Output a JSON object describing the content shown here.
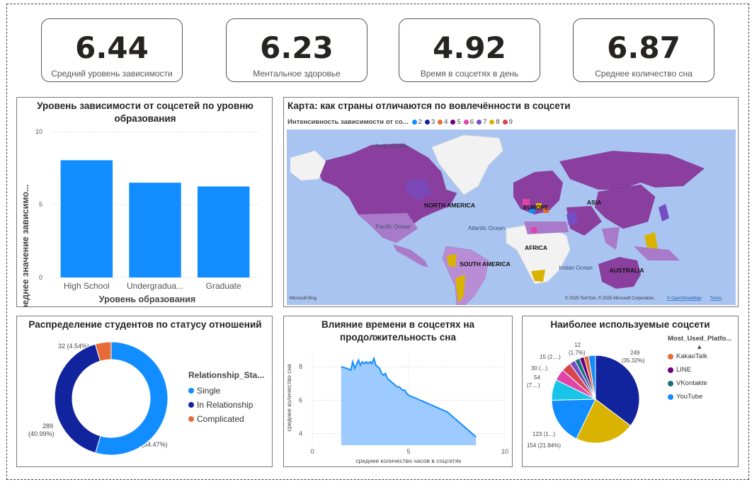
{
  "kpis": [
    {
      "value": "6.44",
      "label": "Средний уровень зависимости"
    },
    {
      "value": "6.23",
      "label": "Ментальное здоровье"
    },
    {
      "value": "4.92",
      "label": "Время в соцсетях в день"
    },
    {
      "value": "6.87",
      "label": "Среднее количество сна"
    }
  ],
  "bar_panel": {
    "title": "Уровень зависимости от соцсетей по уровню образования",
    "xlabel": "Уровень образования",
    "ylabel": "Среднее значение зависимо...",
    "color": "#118DFF"
  },
  "map_panel": {
    "title": "Карта: как страны отличаются по вовлечённости в соцсети",
    "legend_title": "Интенсивность зависимости от со...",
    "legend": [
      {
        "label": "2",
        "color": "#118DFF"
      },
      {
        "label": "3",
        "color": "#12239E"
      },
      {
        "label": "4",
        "color": "#E66C37"
      },
      {
        "label": "5",
        "color": "#6B007B"
      },
      {
        "label": "6",
        "color": "#E044A7"
      },
      {
        "label": "7",
        "color": "#744EC2"
      },
      {
        "label": "8",
        "color": "#D9B300"
      },
      {
        "label": "9",
        "color": "#D64550"
      }
    ],
    "labels": {
      "arctic": "Arctic Ocean",
      "pacific": "Pacific Ocean",
      "atlantic": "Atlantic Ocean",
      "indian": "Indian Ocean",
      "na": "NORTH AMERICA",
      "sa": "SOUTH AMERICA",
      "europe": "EUROPE",
      "africa": "AFRICA",
      "asia": "ASIA",
      "australia": "AUSTRALIA"
    },
    "bing": "Microsoft Bing",
    "copyright": "© 2025 TomTom, © 2025 Microsoft Corporation,",
    "osm": "© OpenStreetMap",
    "terms": "Terms"
  },
  "donut_panel": {
    "title": "Распределение студентов по статусу отношений",
    "legend_title": "Relationship_Sta...",
    "labels": {
      "single": "384",
      "single_pct": "(54.47%)",
      "inrel": "289",
      "inrel_pct": "(40.99%)",
      "comp": "32 (4.54%)"
    }
  },
  "area_panel": {
    "title": "Влияние времени в соцсетях на продолжительность сна",
    "xlabel": "среднее количество часов в соцсетях",
    "ylabel": "среднее количество сна"
  },
  "pie_panel": {
    "title": "Наиболее используемые соцсети",
    "legend_title": "Most_Used_Platfo...",
    "legend": [
      {
        "label": "KakaoTalk",
        "color": "#E66C37"
      },
      {
        "label": "LINE",
        "color": "#6B007B"
      },
      {
        "label": "VKontakte",
        "color": "#197278"
      },
      {
        "label": "YouTube",
        "color": "#118DFF"
      }
    ],
    "labels": {
      "l249": "249",
      "l249p": "(35.32%)",
      "l154": "154 (21.84%)",
      "l123": "123 (1...)",
      "l54": "54",
      "l54b": "(7....)",
      "l30": "30 (...)",
      "l15": "15 (2....)",
      "l12": "12",
      "l12p": "(1.7%)"
    }
  },
  "chart_data": [
    {
      "type": "bar",
      "title": "Уровень зависимости от соцсетей по уровню образования",
      "categories": [
        "High School",
        "Undergradua...",
        "Graduate"
      ],
      "values": [
        8.04,
        6.5,
        6.24
      ],
      "xlabel": "Уровень образования",
      "ylabel": "Среднее значение зависимо...",
      "ylim": [
        0,
        10
      ],
      "yticks": [
        "0",
        "5",
        "10"
      ],
      "grid": true
    },
    {
      "type": "pie",
      "title": "Распределение студентов по статусу отношений",
      "donut": true,
      "legend_position": "right",
      "series": [
        {
          "name": "Single",
          "value": 384,
          "color": "#118DFF"
        },
        {
          "name": "In Relationship",
          "value": 289,
          "color": "#12239E"
        },
        {
          "name": "Complicated",
          "value": 32,
          "color": "#E66C37"
        }
      ]
    },
    {
      "type": "area",
      "title": "Влияние времени в соцсетях на продолжительность сна",
      "xlabel": "среднее количество часов в соцсетях",
      "ylabel": "среднее количество сна",
      "xlim": [
        0,
        10
      ],
      "xticks": [
        "0",
        "5",
        "10"
      ],
      "ylim": [
        3.3,
        8.9
      ],
      "yticks": [
        "4",
        "6",
        "8"
      ],
      "x": [
        1.5,
        1.8,
        2.0,
        2.1,
        2.2,
        2.4,
        2.5,
        2.6,
        2.7,
        2.8,
        2.9,
        3.0,
        3.1,
        3.2,
        3.3,
        3.4,
        3.5,
        3.6,
        3.7,
        3.8,
        3.9,
        4.0,
        4.1,
        4.2,
        4.3,
        4.4,
        4.5,
        4.6,
        4.7,
        4.8,
        4.9,
        5.0,
        5.2,
        5.4,
        5.6,
        5.8,
        6.0,
        6.2,
        6.4,
        6.6,
        6.8,
        7.0,
        7.2,
        7.4,
        7.6,
        7.8,
        8.0,
        8.2,
        8.5
      ],
      "y": [
        8.0,
        7.9,
        7.8,
        8.3,
        7.9,
        8.4,
        8.1,
        8.3,
        8.2,
        8.3,
        8.2,
        8.3,
        8.2,
        8.5,
        8.1,
        8.0,
        7.9,
        7.6,
        7.5,
        7.6,
        7.3,
        7.2,
        7.1,
        7.0,
        6.9,
        6.8,
        6.8,
        6.7,
        6.6,
        6.6,
        6.4,
        6.3,
        6.2,
        6.1,
        6.0,
        5.9,
        5.8,
        5.7,
        5.6,
        5.5,
        5.4,
        5.3,
        5.1,
        4.9,
        4.7,
        4.5,
        4.3,
        4.1,
        3.8
      ],
      "color": "#118DFF",
      "grid": true
    },
    {
      "type": "pie",
      "title": "Наиболее используемые соцсети",
      "legend_position": "right",
      "series": [
        {
          "value": 249,
          "color": "#12239E"
        },
        {
          "value": 154,
          "color": "#D9B300"
        },
        {
          "value": 123,
          "color": "#118DFF"
        },
        {
          "value": 54,
          "color": "#18C5E8"
        },
        {
          "value": 30,
          "color": "#E044A7"
        },
        {
          "value": 25,
          "color": "#D64550"
        },
        {
          "value": 15,
          "color": "#744EC2"
        },
        {
          "value": 13,
          "color": "#197278"
        },
        {
          "value": 12,
          "color": "#6B007B"
        },
        {
          "value": 12,
          "color": "#E66C37"
        },
        {
          "value": 18,
          "color": "#118DFF"
        }
      ]
    }
  ]
}
